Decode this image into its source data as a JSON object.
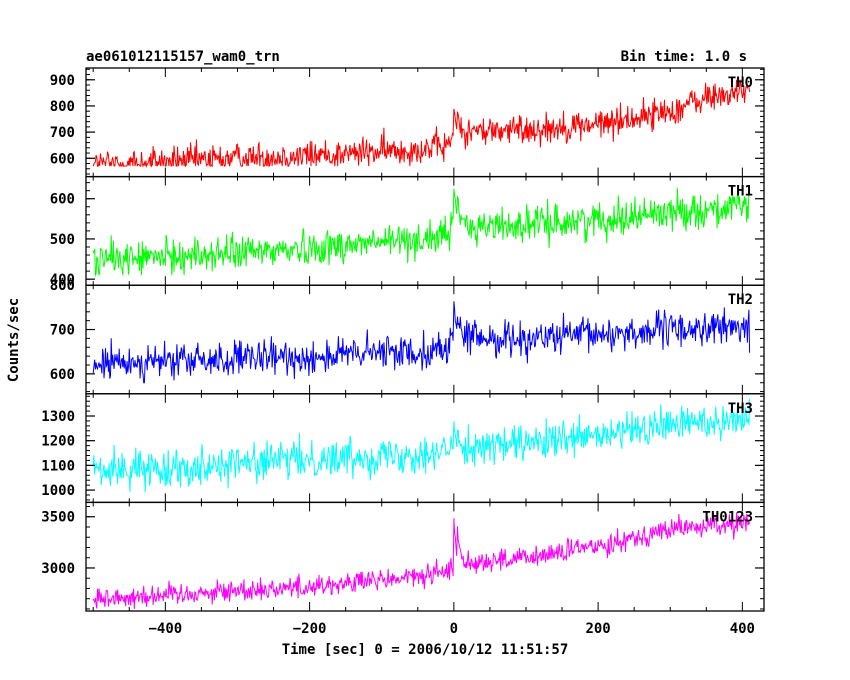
{
  "chart_data": {
    "type": "line",
    "title": "ae061012115157_wam0_trn",
    "subtitle": "Bin time: 1.0 s",
    "xlabel": "Time [sec] 0 = 2006/10/12 11:51:57",
    "ylabel": "Counts/sec",
    "xlim": [
      -510,
      430
    ],
    "x_ticks": [
      -400,
      -200,
      0,
      200,
      400
    ],
    "x_tick_labels": [
      "−400",
      "−200",
      "0",
      "200",
      "400"
    ],
    "x_range": [
      -500,
      410
    ],
    "grid": false,
    "series": [
      {
        "name": "TH0",
        "color": "#ff0000",
        "ylim": [
          530,
          945
        ],
        "ticks": [
          600,
          700,
          800,
          900
        ],
        "trend_x": [
          -500,
          -400,
          -300,
          -200,
          -100,
          -10,
          0,
          100,
          200,
          300,
          350,
          410
        ],
        "trend_y": [
          575,
          585,
          600,
          610,
          625,
          645,
          700,
          710,
          730,
          780,
          830,
          860
        ],
        "noise": 30,
        "burst_peak": 790,
        "span": [
          570,
          900
        ]
      },
      {
        "name": "TH1",
        "color": "#00ff00",
        "ylim": [
          385,
          655
        ],
        "ticks": [
          400,
          500,
          600
        ],
        "trend_x": [
          -500,
          -400,
          -300,
          -200,
          -100,
          -10,
          0,
          100,
          200,
          300,
          410
        ],
        "trend_y": [
          448,
          455,
          465,
          478,
          492,
          505,
          530,
          535,
          548,
          568,
          578
        ],
        "noise": 22,
        "burst_peak": 640,
        "span": [
          410,
          640
        ]
      },
      {
        "name": "TH2",
        "color": "#0000ff",
        "ylim": [
          555,
          800
        ],
        "ticks": [
          600,
          700,
          800
        ],
        "trend_x": [
          -500,
          -400,
          -300,
          -200,
          -100,
          -10,
          0,
          100,
          200,
          300,
          410
        ],
        "trend_y": [
          622,
          628,
          632,
          638,
          648,
          655,
          680,
          680,
          688,
          700,
          705
        ],
        "noise": 20,
        "burst_peak": 760,
        "span": [
          580,
          800
        ]
      },
      {
        "name": "TH3",
        "color": "#00ffff",
        "ylim": [
          950,
          1390
        ],
        "ticks": [
          1000,
          1100,
          1200,
          1300
        ],
        "trend_x": [
          -500,
          -400,
          -300,
          -200,
          -100,
          -10,
          0,
          100,
          200,
          300,
          410
        ],
        "trend_y": [
          1075,
          1090,
          1110,
          1125,
          1140,
          1155,
          1170,
          1185,
          1215,
          1265,
          1295
        ],
        "noise": 38,
        "burst_peak": 1260,
        "span": [
          990,
          1370
        ]
      },
      {
        "name": "TH0123",
        "color": "#ff00ff",
        "ylim": [
          2580,
          3640
        ],
        "ticks": [
          3000,
          3500
        ],
        "trend_x": [
          -500,
          -400,
          -300,
          -200,
          -100,
          -10,
          0,
          100,
          200,
          300,
          410
        ],
        "trend_y": [
          2700,
          2740,
          2780,
          2820,
          2880,
          2950,
          3050,
          3090,
          3220,
          3380,
          3440
        ],
        "noise": 55,
        "burst_peak": 3450,
        "span": [
          2600,
          3560
        ]
      }
    ]
  }
}
